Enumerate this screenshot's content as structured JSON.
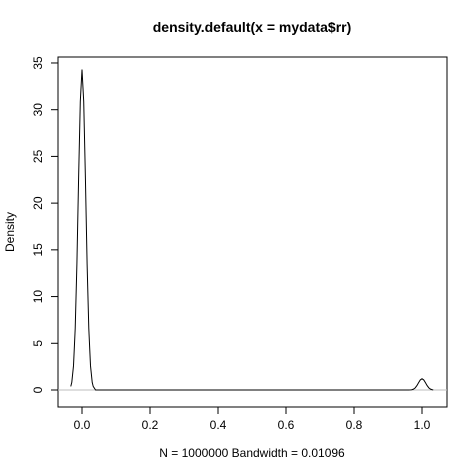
{
  "chart_data": {
    "type": "line",
    "title": "density.default(x = mydata$rr)",
    "xlabel": "N = 1000000   Bandwidth = 0.01096",
    "ylabel": "Density",
    "x": [
      -0.033,
      -0.03,
      -0.025,
      -0.02,
      -0.015,
      -0.01,
      -0.005,
      0,
      0.005,
      0.01,
      0.015,
      0.02,
      0.025,
      0.03,
      0.033,
      0.04,
      0.96,
      0.967,
      0.97,
      0.975,
      0.98,
      0.985,
      0.99,
      0.995,
      1.0,
      1.005,
      1.01,
      1.015,
      1.02,
      1.025,
      1.03,
      1.033
    ],
    "values": [
      0.38,
      0.83,
      2.6,
      6.57,
      13.5,
      22.7,
      30.9,
      34.3,
      30.9,
      22.7,
      13.5,
      6.57,
      2.6,
      0.83,
      0.38,
      0,
      0,
      0.013,
      0.029,
      0.091,
      0.23,
      0.47,
      0.79,
      1.08,
      1.2,
      1.08,
      0.79,
      0.47,
      0.23,
      0.091,
      0.029,
      0.013
    ],
    "color": "#000000",
    "zero_line_color": "#bebebe",
    "xlim": [
      -0.0706,
      1.0735
    ],
    "ylim": [
      -1.82,
      35.64
    ],
    "xticks": [
      {
        "value": 0,
        "label": "0.0"
      },
      {
        "value": 0.2,
        "label": "0.2"
      },
      {
        "value": 0.4,
        "label": "0.4"
      },
      {
        "value": 0.6,
        "label": "0.6"
      },
      {
        "value": 0.8,
        "label": "0.8"
      },
      {
        "value": 1,
        "label": "1.0"
      }
    ],
    "yticks": [
      0,
      5,
      10,
      15,
      20,
      25,
      30,
      35
    ]
  }
}
